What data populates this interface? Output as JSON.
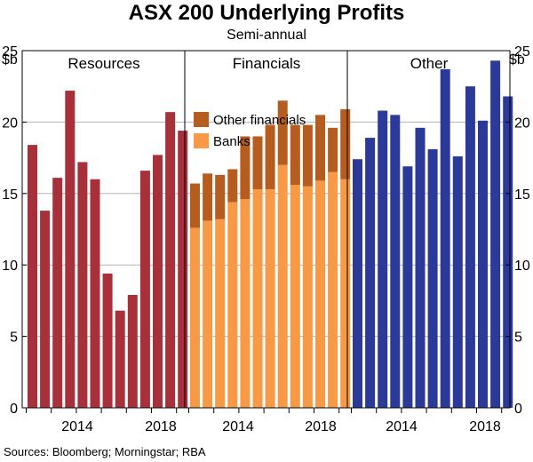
{
  "chart_data": {
    "type": "bar",
    "title": "ASX 200 Underlying Profits",
    "subtitle": "Semi-annual",
    "unit_left": "$b",
    "unit_right": "$b",
    "ylim": [
      0,
      25
    ],
    "yticks": [
      0,
      5,
      10,
      15,
      20,
      25
    ],
    "colors": {
      "resources": "#a8303b",
      "banks": "#f79945",
      "other_financials": "#b65c1e",
      "other": "#2b3a99"
    },
    "panels": [
      {
        "name": "Resources",
        "x_tick_labels": [
          "2014",
          "2018"
        ],
        "series": [
          {
            "name": "Resources",
            "values": [
              18.4,
              13.8,
              16.1,
              22.2,
              17.2,
              16.0,
              9.4,
              6.8,
              7.9,
              16.6,
              17.7,
              20.7,
              19.4
            ]
          }
        ]
      },
      {
        "name": "Financials",
        "x_tick_labels": [
          "2014",
          "2018"
        ],
        "series": [
          {
            "name": "Banks",
            "values": [
              12.6,
              13.1,
              13.2,
              14.4,
              14.6,
              15.3,
              15.3,
              17.0,
              15.6,
              15.5,
              15.9,
              16.5,
              16.0
            ]
          },
          {
            "name": "Other financials",
            "values": [
              3.1,
              3.3,
              3.1,
              2.3,
              4.4,
              3.7,
              4.5,
              4.5,
              4.2,
              4.3,
              4.6,
              3.1,
              4.9
            ]
          }
        ],
        "legend": [
          "Other financials",
          "Banks"
        ]
      },
      {
        "name": "Other",
        "x_tick_labels": [
          "2014",
          "2018"
        ],
        "series": [
          {
            "name": "Other",
            "values": [
              17.4,
              18.9,
              20.8,
              20.5,
              16.9,
              19.6,
              18.1,
              23.7,
              17.6,
              22.5,
              20.1,
              24.3,
              21.8
            ]
          }
        ]
      }
    ],
    "source": "Sources: Bloomberg; Morningstar; RBA"
  }
}
